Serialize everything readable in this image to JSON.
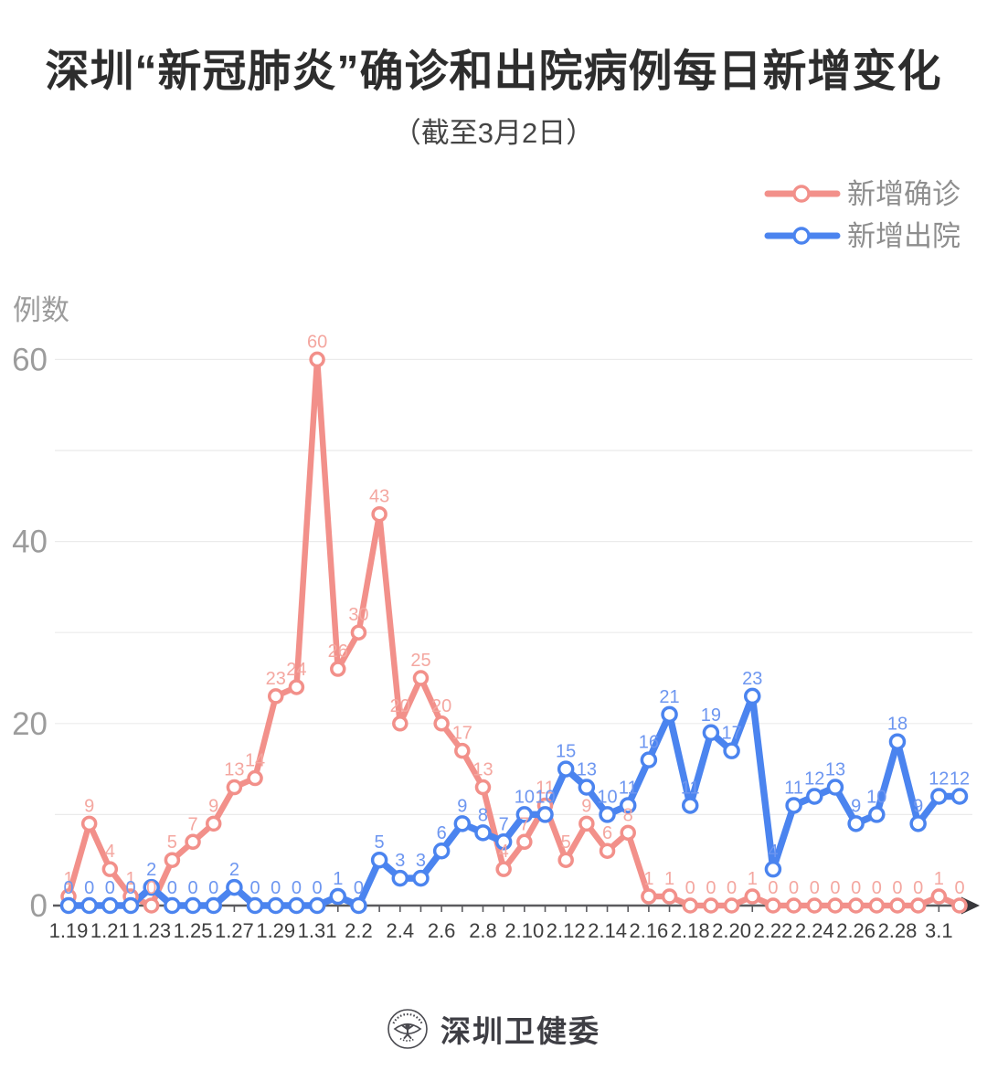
{
  "header": {
    "title": "深圳“新冠肺炎”确诊和出院病例每日新增变化",
    "subtitle": "（截至3月2日）"
  },
  "legend": {
    "position": "top-right",
    "items": [
      {
        "id": "confirmed",
        "label": "新增确诊",
        "color": "#F2908A",
        "label_color": "#F4A7A0"
      },
      {
        "id": "discharged",
        "label": "新增出院",
        "color": "#4B84EF",
        "label_color": "#6D96F0"
      }
    ]
  },
  "axes": {
    "y_title": "例数",
    "y_tick_labels": [
      0,
      20,
      40,
      60
    ],
    "grid_interval": 10,
    "x_tick_labels": [
      "1.19",
      "1.21",
      "1.23",
      "1.25",
      "1.27",
      "1.29",
      "1.31",
      "2.2",
      "2.4",
      "2.6",
      "2.8",
      "2.10",
      "2.12",
      "2.14",
      "2.16",
      "2.18",
      "2.20",
      "2.22",
      "2.24",
      "2.26",
      "2.28",
      "3.1"
    ]
  },
  "chart_data": {
    "type": "line",
    "title": "深圳“新冠肺炎”确诊和出院病例每日新增变化（截至3月2日）",
    "xlabel": "",
    "ylabel": "例数",
    "ylim": [
      0,
      60
    ],
    "y_ticks": [
      0,
      20,
      40,
      60
    ],
    "grid": "horizontal gridlines every 10",
    "legend_position": "top-right",
    "point_labels": "value shown above every data point",
    "categories": [
      "1.19",
      "1.20",
      "1.21",
      "1.22",
      "1.23",
      "1.24",
      "1.25",
      "1.26",
      "1.27",
      "1.28",
      "1.29",
      "1.30",
      "1.31",
      "2.1",
      "2.2",
      "2.3",
      "2.4",
      "2.5",
      "2.6",
      "2.7",
      "2.8",
      "2.9",
      "2.10",
      "2.11",
      "2.12",
      "2.13",
      "2.14",
      "2.15",
      "2.16",
      "2.17",
      "2.18",
      "2.19",
      "2.20",
      "2.21",
      "2.22",
      "2.23",
      "2.24",
      "2.25",
      "2.26",
      "2.27",
      "2.28",
      "2.29",
      "3.1",
      "3.2"
    ],
    "series": [
      {
        "id": "confirmed",
        "name": "新增确诊",
        "color": "#F2908A",
        "label_color": "#F4A7A0",
        "values": [
          1,
          9,
          4,
          1,
          0,
          5,
          7,
          9,
          13,
          14,
          23,
          24,
          60,
          26,
          30,
          43,
          20,
          25,
          20,
          17,
          13,
          4,
          7,
          11,
          5,
          9,
          6,
          8,
          1,
          1,
          0,
          0,
          0,
          1,
          0,
          0,
          0,
          0,
          0,
          0,
          0,
          0,
          1,
          0
        ]
      },
      {
        "id": "discharged",
        "name": "新增出院",
        "color": "#4B84EF",
        "label_color": "#6D96F0",
        "values": [
          0,
          0,
          0,
          0,
          2,
          0,
          0,
          0,
          2,
          0,
          0,
          0,
          0,
          1,
          0,
          5,
          3,
          3,
          6,
          9,
          8,
          7,
          10,
          10,
          15,
          13,
          10,
          11,
          16,
          21,
          11,
          19,
          17,
          23,
          4,
          11,
          12,
          13,
          9,
          10,
          18,
          9,
          12,
          12
        ]
      }
    ]
  },
  "footer": {
    "brand": "深圳卫健委",
    "logo": "shenzhen-health-commission-seal"
  }
}
